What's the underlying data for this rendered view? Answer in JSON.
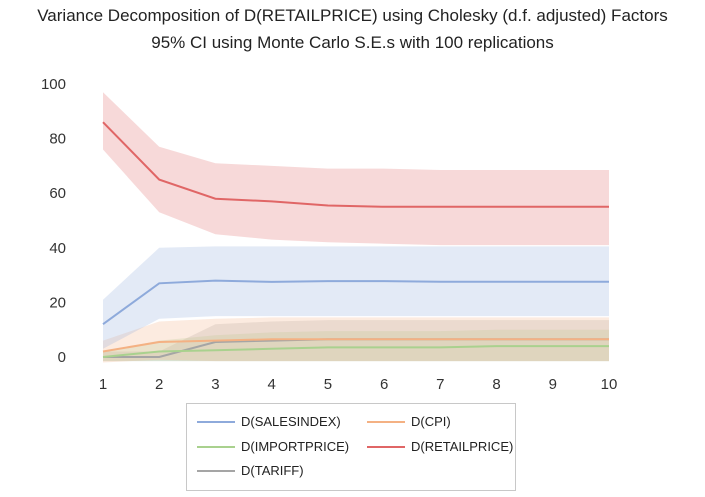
{
  "chart_data": {
    "type": "line",
    "title": "Variance Decomposition of D(RETAILPRICE) using Cholesky (d.f. adjusted) Factors",
    "subtitle": "95% CI using Monte Carlo S.E.s with 100 replications",
    "xlabel": "",
    "ylabel": "",
    "x": [
      1,
      2,
      3,
      4,
      5,
      6,
      7,
      8,
      9,
      10
    ],
    "xlim": [
      1,
      10
    ],
    "ylim": [
      -3,
      100
    ],
    "yticks": [
      0,
      20,
      40,
      60,
      80,
      100
    ],
    "grid": false,
    "legend_position": "bottom",
    "series": [
      {
        "name": "D(SALESINDEX)",
        "color": "#8eaadb",
        "values": [
          12,
          27,
          28,
          27.5,
          27.8,
          27.8,
          27.6,
          27.6,
          27.6,
          27.6
        ],
        "lower": [
          3,
          14,
          15,
          15,
          15,
          15,
          15,
          15,
          15,
          15
        ],
        "upper": [
          21,
          40,
          40.5,
          40.5,
          40.5,
          40.5,
          40.5,
          40.5,
          40.5,
          40.5
        ]
      },
      {
        "name": "D(CPI)",
        "color": "#f4b183",
        "values": [
          2,
          5.5,
          6,
          6.5,
          6.5,
          6.5,
          6.5,
          6.5,
          6.5,
          6.5
        ],
        "lower": [
          -2,
          -1,
          -1.5,
          -1.5,
          -1.5,
          -1.5,
          -1.5,
          -1.5,
          -1.5,
          -1.5
        ],
        "upper": [
          6,
          13,
          14,
          14.5,
          14.5,
          14.5,
          14.5,
          14.5,
          14.5,
          14.5
        ]
      },
      {
        "name": "D(IMPORTPRICE)",
        "color": "#a9d18e",
        "values": [
          0,
          2,
          2.5,
          3,
          3.5,
          3.5,
          3.5,
          4,
          4,
          4
        ],
        "lower": [
          -1.5,
          -1.5,
          -1.5,
          -1.5,
          -1.5,
          -1.5,
          -1.5,
          -1.5,
          -1.5,
          -1.5
        ],
        "upper": [
          2,
          6,
          8,
          9,
          9.5,
          9.5,
          9.5,
          10,
          10,
          10
        ]
      },
      {
        "name": "D(RETAILPRICE)",
        "color": "#e06666",
        "values": [
          86,
          65,
          58,
          57,
          55.5,
          55,
          55,
          55,
          55,
          55
        ],
        "lower": [
          76,
          53,
          45,
          43,
          42,
          41.5,
          41,
          41,
          41,
          41
        ],
        "upper": [
          97,
          77,
          71,
          70,
          69,
          69,
          68.5,
          68.5,
          68.5,
          68.5
        ]
      },
      {
        "name": "D(TARIFF)",
        "color": "#a5a5a5",
        "values": [
          0,
          0,
          5.5,
          6,
          6.5,
          6.5,
          6.5,
          6.5,
          6.5,
          6.5
        ],
        "lower": [
          -1.5,
          -1.5,
          -1.5,
          -1.5,
          -1.5,
          -1.5,
          -1.5,
          -1.5,
          -1.5,
          -1.5
        ],
        "upper": [
          2,
          2,
          12,
          13,
          13.5,
          13.5,
          13.5,
          13.5,
          13.5,
          13.5
        ]
      }
    ]
  }
}
